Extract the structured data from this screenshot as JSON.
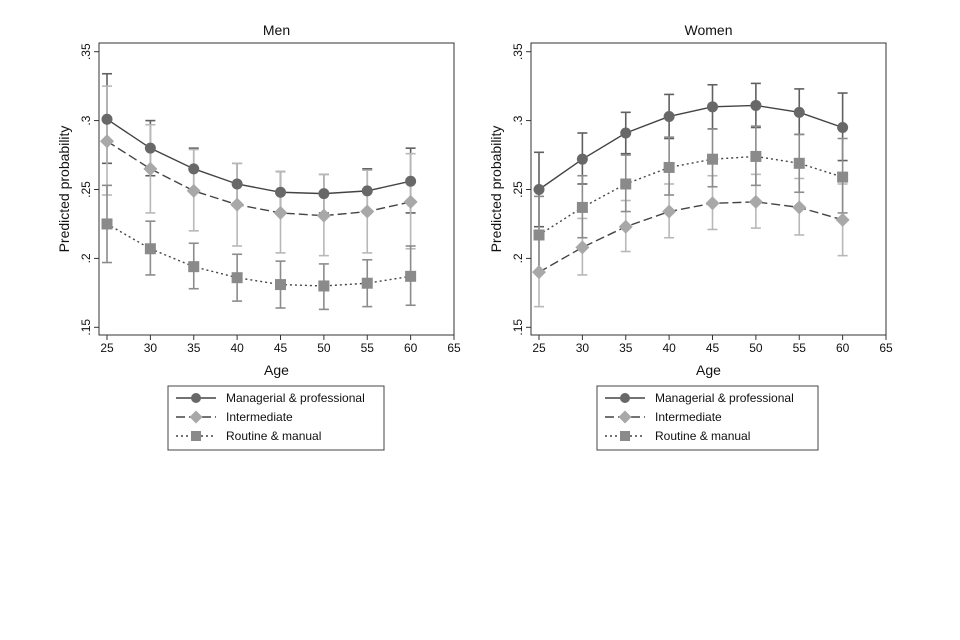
{
  "chart_data": [
    {
      "type": "line",
      "title": "Men",
      "xlabel": "Age",
      "ylabel": "Predicted probability",
      "xlim": [
        25,
        65
      ],
      "ylim": [
        0.15,
        0.35
      ],
      "xticks": [
        "25",
        "30",
        "35",
        "40",
        "45",
        "50",
        "55",
        "60",
        "65"
      ],
      "yticks": [
        ".15",
        ".2",
        ".25",
        ".3",
        ".35"
      ],
      "grid": false,
      "legend_position": "bottom",
      "x": [
        25,
        30,
        35,
        40,
        45,
        50,
        55,
        60
      ],
      "series": [
        {
          "name": "Managerial & professional",
          "marker": "circle",
          "line": "solid",
          "color": "#686868",
          "values": [
            0.301,
            0.28,
            0.265,
            0.254,
            0.248,
            0.247,
            0.249,
            0.256
          ],
          "ci_upper": [
            0.334,
            0.3,
            0.28,
            0.269,
            0.263,
            0.261,
            0.265,
            0.28
          ],
          "ci_lower": [
            0.269,
            0.26,
            0.25,
            0.239,
            0.233,
            0.233,
            0.233,
            0.233
          ]
        },
        {
          "name": "Intermediate",
          "marker": "diamond",
          "line": "dashed",
          "color": "#a8a8a8",
          "values": [
            0.285,
            0.265,
            0.249,
            0.239,
            0.233,
            0.231,
            0.234,
            0.241
          ],
          "ci_upper": [
            0.325,
            0.297,
            0.279,
            0.269,
            0.263,
            0.261,
            0.264,
            0.276
          ],
          "ci_lower": [
            0.246,
            0.233,
            0.22,
            0.209,
            0.204,
            0.202,
            0.204,
            0.207
          ]
        },
        {
          "name": "Routine & manual",
          "marker": "square",
          "line": "dotted",
          "color": "#8a8a8a",
          "values": [
            0.225,
            0.207,
            0.194,
            0.186,
            0.181,
            0.18,
            0.182,
            0.187
          ],
          "ci_upper": [
            0.253,
            0.227,
            0.211,
            0.203,
            0.198,
            0.196,
            0.199,
            0.209
          ],
          "ci_lower": [
            0.197,
            0.188,
            0.178,
            0.169,
            0.164,
            0.163,
            0.165,
            0.166
          ]
        }
      ]
    },
    {
      "type": "line",
      "title": "Women",
      "xlabel": "Age",
      "ylabel": "Predicted probability",
      "xlim": [
        25,
        65
      ],
      "ylim": [
        0.15,
        0.35
      ],
      "xticks": [
        "25",
        "30",
        "35",
        "40",
        "45",
        "50",
        "55",
        "60",
        "65"
      ],
      "yticks": [
        ".15",
        ".2",
        ".25",
        ".3",
        ".35"
      ],
      "grid": false,
      "legend_position": "bottom",
      "x": [
        25,
        30,
        35,
        40,
        45,
        50,
        55,
        60
      ],
      "series": [
        {
          "name": "Managerial & professional",
          "marker": "circle",
          "line": "solid",
          "color": "#686868",
          "values": [
            0.25,
            0.272,
            0.291,
            0.303,
            0.31,
            0.311,
            0.306,
            0.295
          ],
          "ci_upper": [
            0.277,
            0.291,
            0.306,
            0.319,
            0.326,
            0.327,
            0.323,
            0.32
          ],
          "ci_lower": [
            0.223,
            0.254,
            0.276,
            0.287,
            0.294,
            0.295,
            0.29,
            0.271
          ]
        },
        {
          "name": "Intermediate",
          "marker": "diamond",
          "line": "dashed",
          "color": "#a8a8a8",
          "values": [
            0.19,
            0.208,
            0.223,
            0.234,
            0.24,
            0.241,
            0.237,
            0.228
          ],
          "ci_upper": [
            0.215,
            0.229,
            0.242,
            0.254,
            0.26,
            0.261,
            0.258,
            0.254
          ],
          "ci_lower": [
            0.165,
            0.188,
            0.205,
            0.215,
            0.221,
            0.222,
            0.217,
            0.202
          ]
        },
        {
          "name": "Routine & manual",
          "marker": "square",
          "line": "dotted",
          "color": "#8a8a8a",
          "values": [
            0.217,
            0.237,
            0.254,
            0.266,
            0.272,
            0.274,
            0.269,
            0.259
          ],
          "ci_upper": [
            0.245,
            0.26,
            0.275,
            0.288,
            0.294,
            0.296,
            0.29,
            0.287
          ],
          "ci_lower": [
            0.189,
            0.215,
            0.234,
            0.246,
            0.252,
            0.253,
            0.248,
            0.233
          ]
        }
      ]
    }
  ]
}
